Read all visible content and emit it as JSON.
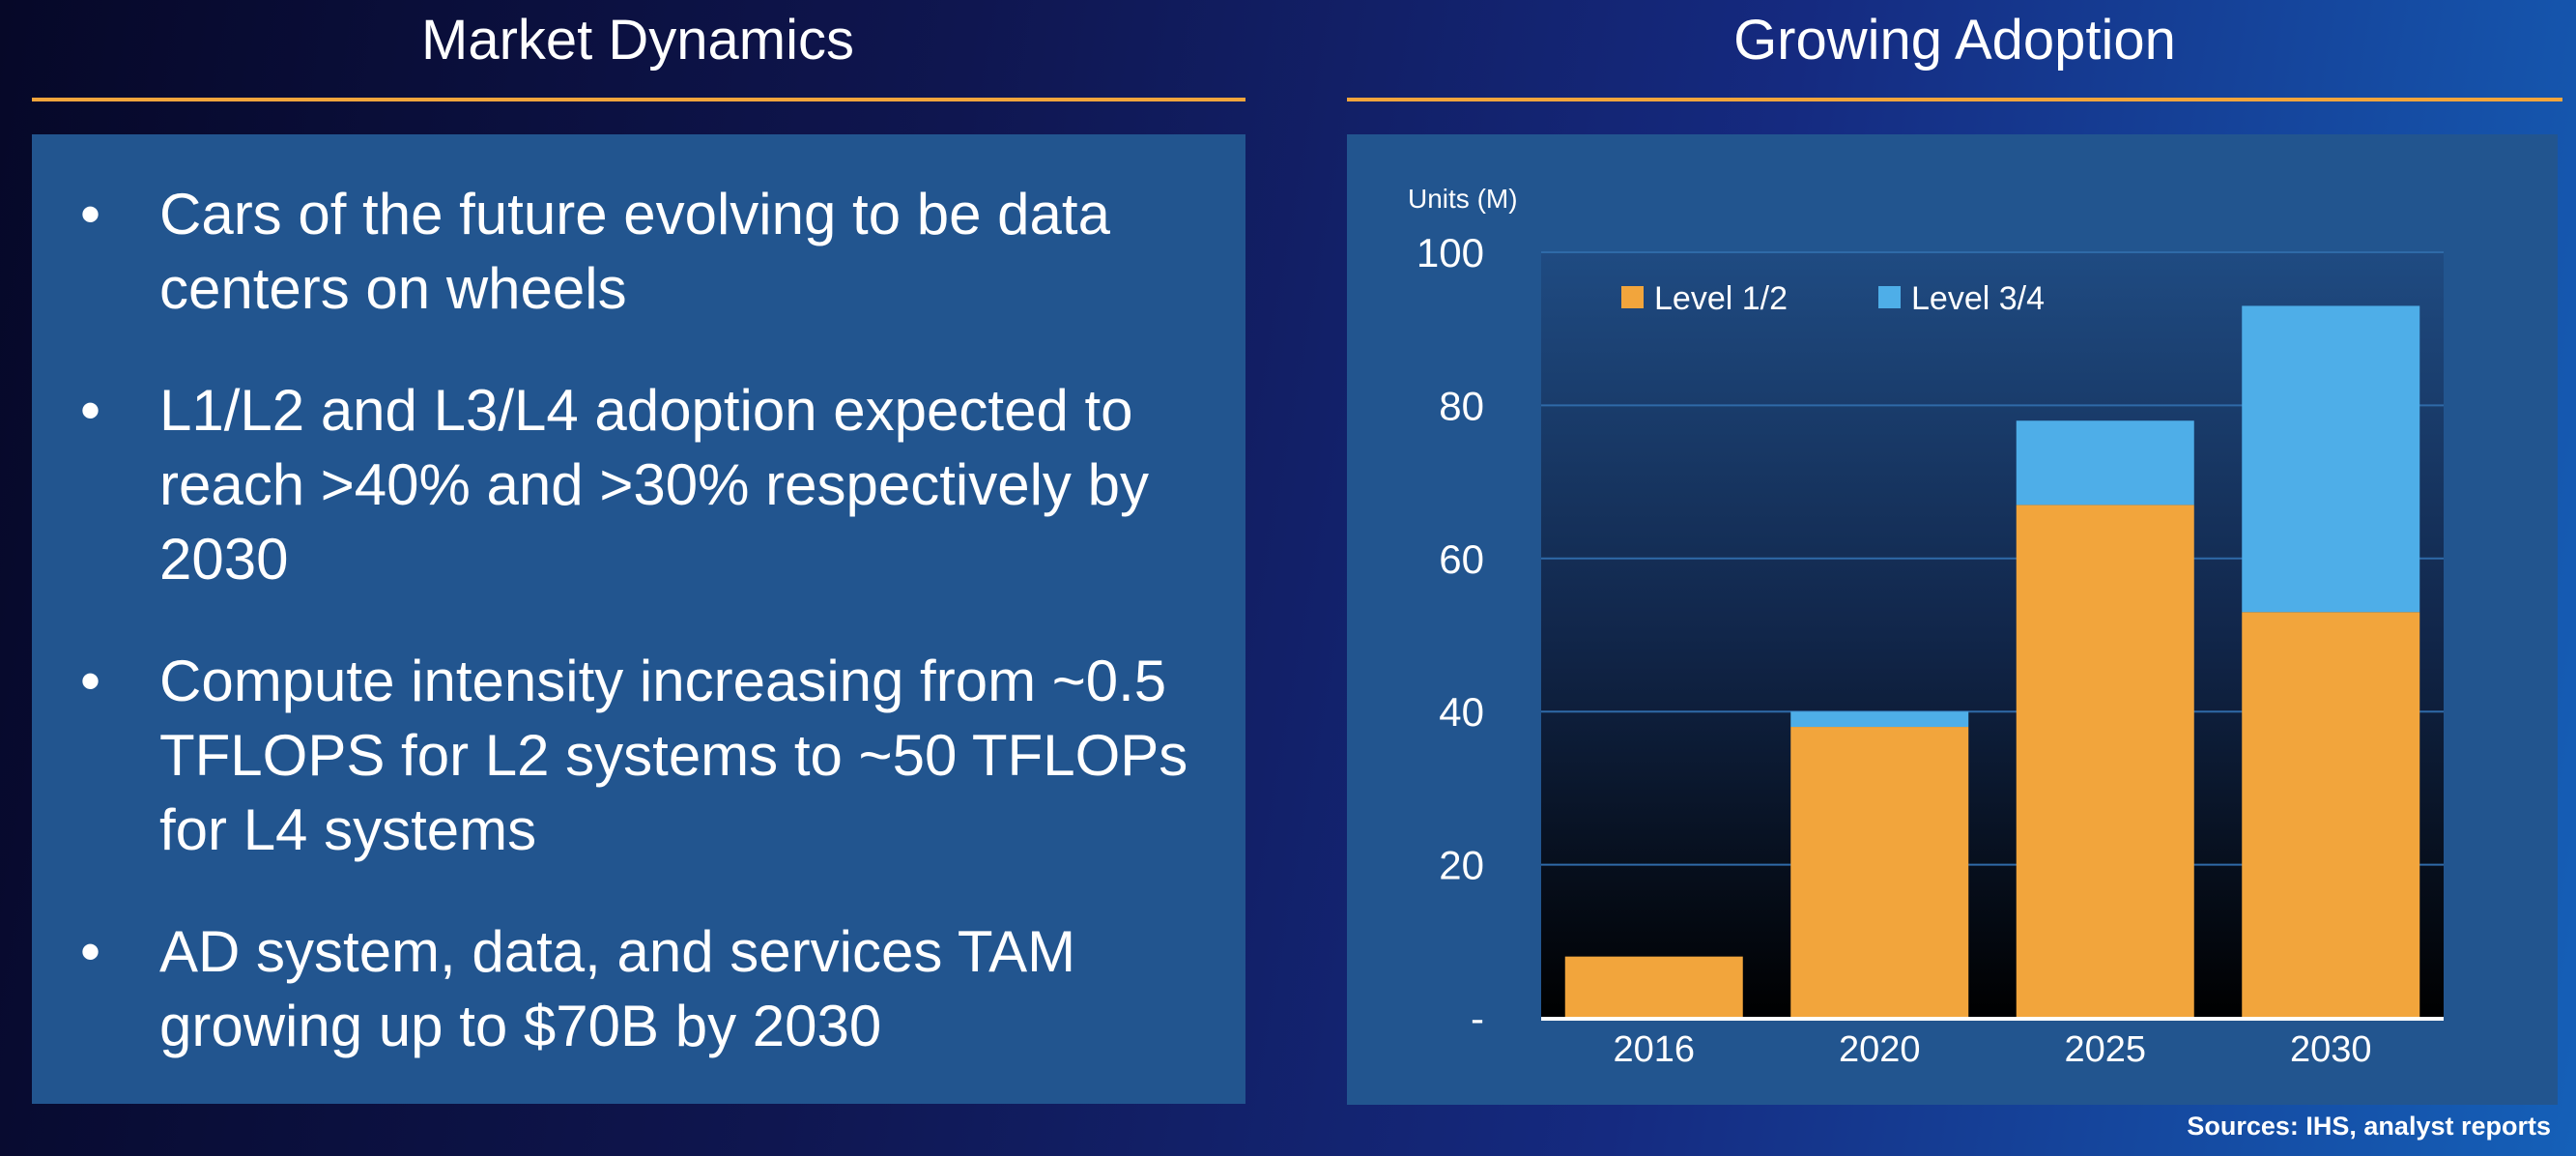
{
  "left": {
    "title": "Market Dynamics",
    "bullets": [
      "Cars of the future evolving to be data centers on wheels",
      "L1/L2 and L3/L4 adoption expected to reach >40% and >30% respectively by 2030",
      "Compute intensity increasing from ~0.5 TFLOPS for L2 systems to ~50 TFLOPs for L4 systems",
      "AD system, data, and services TAM growing up to $70B by 2030"
    ]
  },
  "right": {
    "title": "Growing Adoption"
  },
  "sources": "Sources:  IHS, analyst reports",
  "colors": {
    "accent_rule": "#f2a53c",
    "panel": "#22558f"
  },
  "chart_data": {
    "type": "bar",
    "stacked": true,
    "ylabel": "Units (M)",
    "categories": [
      "2016",
      "2020",
      "2025",
      "2030"
    ],
    "series": [
      {
        "name": "Level 1/2",
        "color": "#f2a53c",
        "values": [
          8,
          38,
          67,
          53
        ]
      },
      {
        "name": "Level 3/4",
        "color": "#4eaee8",
        "values": [
          0,
          2,
          11,
          40
        ]
      }
    ],
    "ylim": [
      0,
      100
    ],
    "yticks": [
      0,
      20,
      40,
      60,
      80,
      100
    ],
    "ytick_labels": [
      "-",
      "20",
      "40",
      "60",
      "80",
      "100"
    ],
    "grid": true,
    "legend": "top-left"
  }
}
